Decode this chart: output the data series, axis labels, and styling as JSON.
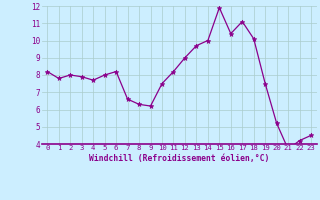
{
  "x": [
    0,
    1,
    2,
    3,
    4,
    5,
    6,
    7,
    8,
    9,
    10,
    11,
    12,
    13,
    14,
    15,
    16,
    17,
    18,
    19,
    20,
    21,
    22,
    23
  ],
  "y": [
    8.2,
    7.8,
    8.0,
    7.9,
    7.7,
    8.0,
    8.2,
    6.6,
    6.3,
    6.2,
    7.5,
    8.2,
    9.0,
    9.7,
    10.0,
    11.9,
    10.4,
    11.1,
    10.1,
    7.5,
    5.2,
    3.7,
    4.2,
    4.5
  ],
  "xlabel": "Windchill (Refroidissement éolien,°C)",
  "xlim": [
    -0.5,
    23.5
  ],
  "ylim": [
    4,
    12
  ],
  "yticks": [
    4,
    5,
    6,
    7,
    8,
    9,
    10,
    11,
    12
  ],
  "xticks": [
    0,
    1,
    2,
    3,
    4,
    5,
    6,
    7,
    8,
    9,
    10,
    11,
    12,
    13,
    14,
    15,
    16,
    17,
    18,
    19,
    20,
    21,
    22,
    23
  ],
  "line_color": "#8B008B",
  "marker_color": "#8B008B",
  "bg_color": "#cceeff",
  "grid_color": "#aacccc",
  "xlabel_color": "#8B008B",
  "tick_color": "#8B008B"
}
